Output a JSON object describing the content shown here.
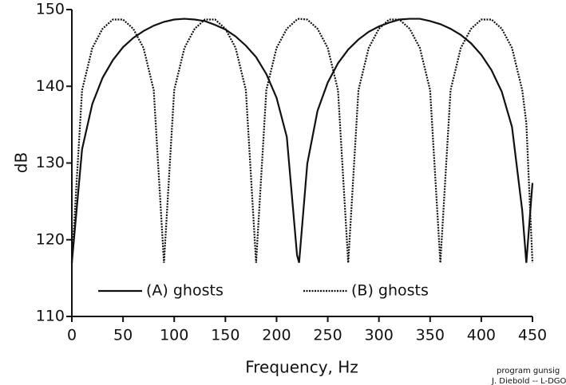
{
  "chart_data": {
    "type": "line",
    "x_label": "Frequency, Hz",
    "y_label": "dB",
    "x": [
      0,
      10,
      20,
      30,
      40,
      50,
      60,
      70,
      80,
      90,
      100,
      110,
      120,
      130,
      140,
      150,
      160,
      170,
      180,
      190,
      200,
      210,
      220,
      222,
      230,
      240,
      250,
      260,
      270,
      280,
      290,
      300,
      310,
      320,
      330,
      340,
      350,
      360,
      370,
      380,
      390,
      400,
      410,
      420,
      430,
      440,
      444,
      450
    ],
    "series": [
      {
        "name": "(A) ghosts",
        "color": "#111111",
        "style": "solid",
        "values": [
          117,
          131.8,
          137.7,
          141.1,
          143.4,
          145.1,
          146.3,
          147.2,
          147.9,
          148.4,
          148.7,
          148.8,
          148.7,
          148.5,
          148.0,
          147.4,
          146.5,
          145.3,
          143.8,
          141.6,
          138.5,
          133.4,
          118,
          117,
          129.9,
          136.8,
          140.5,
          143.0,
          144.8,
          146.1,
          147.1,
          147.8,
          148.3,
          148.7,
          148.8,
          148.8,
          148.5,
          148.1,
          147.5,
          146.7,
          145.6,
          144.1,
          142.1,
          139.3,
          134.7,
          123.8,
          117,
          127.4
        ]
      },
      {
        "name": "(B) ghosts",
        "color": "#111111",
        "style": "dotted",
        "values": [
          117,
          139.5,
          145.0,
          147.5,
          148.7,
          148.7,
          147.5,
          145.0,
          139.5,
          117,
          139.5,
          145.0,
          147.5,
          148.7,
          148.7,
          147.5,
          145.0,
          139.5,
          117,
          139.5,
          145.0,
          147.5,
          148.7,
          148.8,
          148.7,
          147.5,
          145.0,
          139.5,
          117,
          139.5,
          145.0,
          147.5,
          148.7,
          148.7,
          147.5,
          145.0,
          139.5,
          117,
          139.5,
          145.0,
          147.5,
          148.7,
          148.7,
          147.5,
          145.0,
          139.5,
          135.2,
          117
        ]
      }
    ],
    "xlim": [
      0,
      450
    ],
    "ylim": [
      110,
      150
    ],
    "xticks": [
      0,
      50,
      100,
      150,
      200,
      250,
      300,
      350,
      400,
      450
    ],
    "yticks": [
      110,
      120,
      130,
      140,
      150
    ],
    "grid": false,
    "legend": "bottom",
    "notes": [
      "program gunsig",
      "J. Diebold -- L-DGO"
    ]
  }
}
